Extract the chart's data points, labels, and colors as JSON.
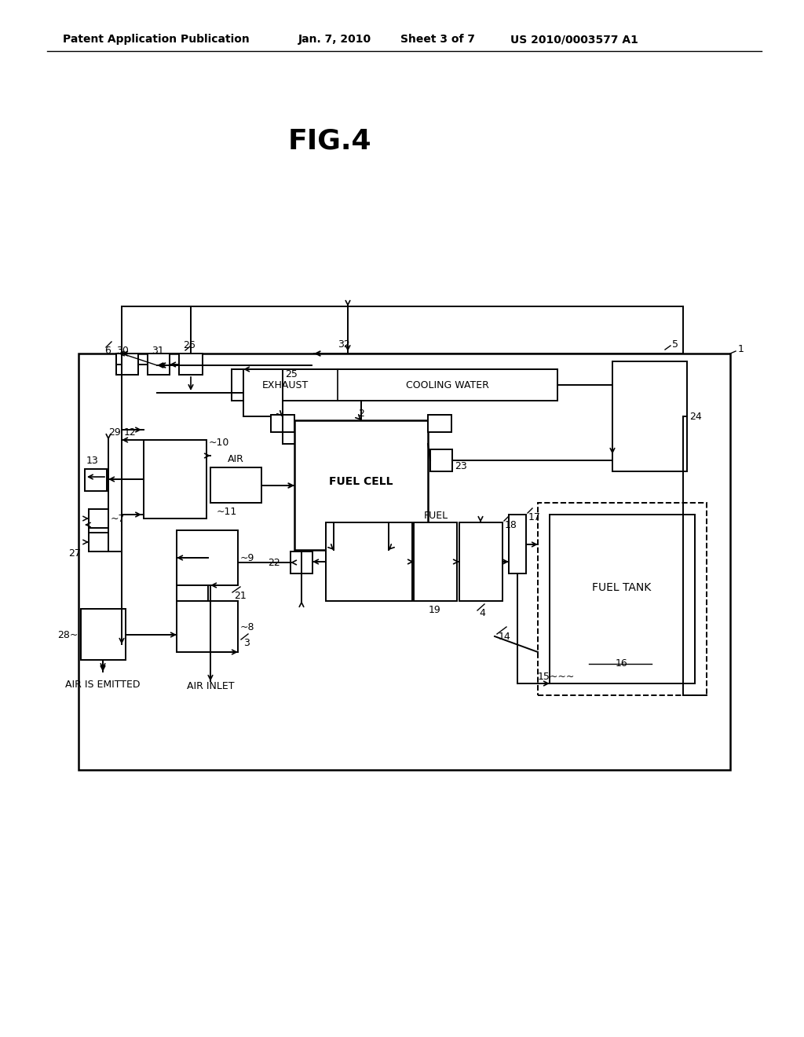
{
  "title": "FIG.4",
  "header_left": "Patent Application Publication",
  "header_mid1": "Jan. 7, 2010",
  "header_mid2": "Sheet 3 of 7",
  "header_right": "US 2010/0003577 A1",
  "bg_color": "#ffffff",
  "lc": "#000000",
  "fig_width": 10.24,
  "fig_height": 13.2,
  "dpi": 100
}
